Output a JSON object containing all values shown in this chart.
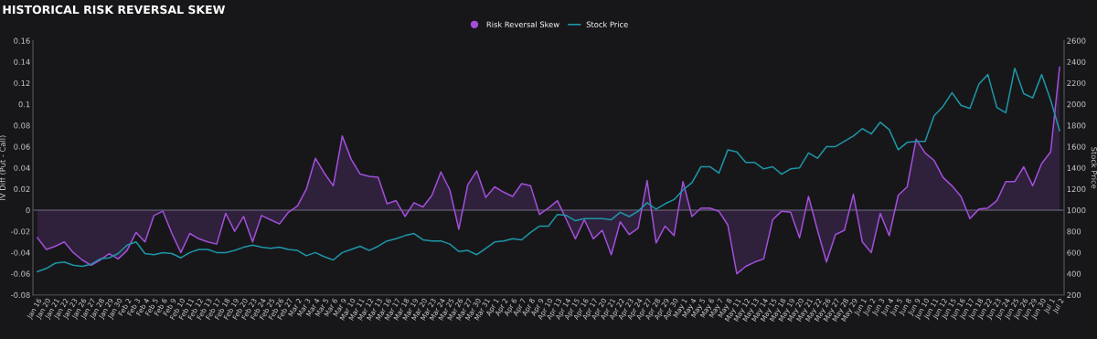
{
  "chart_data": {
    "type": "area",
    "title": "HISTORICAL RISK REVERSAL SKEW",
    "ylabel": "IV Diff (Put - Call)",
    "y2label": "Stock Price",
    "categories": [
      "Jan 16",
      "Jan 20",
      "Jan 21",
      "Jan 22",
      "Jan 23",
      "Jan 26",
      "Jan 27",
      "Jan 28",
      "Jan 29",
      "Jan 30",
      "Feb 2",
      "Feb 3",
      "Feb 4",
      "Feb 5",
      "Feb 6",
      "Feb 9",
      "Feb 10",
      "Feb 11",
      "Feb 12",
      "Feb 13",
      "Feb 17",
      "Feb 18",
      "Feb 19",
      "Feb 20",
      "Feb 23",
      "Feb 24",
      "Feb 25",
      "Feb 26",
      "Feb 27",
      "Mar 2",
      "Mar 3",
      "Mar 4",
      "Mar 5",
      "Mar 6",
      "Mar 9",
      "Mar 10",
      "Mar 11",
      "Mar 12",
      "Mar 13",
      "Mar 16",
      "Mar 17",
      "Mar 18",
      "Mar 19",
      "Mar 20",
      "Mar 23",
      "Mar 24",
      "Mar 25",
      "Mar 26",
      "Mar 27",
      "Mar 30",
      "Mar 31",
      "Apr 1",
      "Apr 2",
      "Apr 6",
      "Apr 7",
      "Apr 8",
      "Apr 9",
      "Apr 10",
      "Apr 13",
      "Apr 14",
      "Apr 15",
      "Apr 16",
      "Apr 17",
      "Apr 20",
      "Apr 21",
      "Apr 22",
      "Apr 23",
      "Apr 24",
      "Apr 27",
      "Apr 28",
      "Apr 29",
      "Apr 30",
      "May 1",
      "May 4",
      "May 5",
      "May 6",
      "May 7",
      "May 8",
      "May 11",
      "May 12",
      "May 13",
      "May 14",
      "May 15",
      "May 18",
      "May 19",
      "May 20",
      "May 21",
      "May 22",
      "May 26",
      "May 27",
      "May 28",
      "May 29",
      "Jun 1",
      "Jun 2",
      "Jun 3",
      "Jun 4",
      "Jun 5",
      "Jun 8",
      "Jun 9",
      "Jun 10",
      "Jun 11",
      "Jun 12",
      "Jun 15",
      "Jun 16",
      "Jun 17",
      "Jun 18",
      "Jun 22",
      "Jun 23",
      "Jun 24",
      "Jun 25",
      "Jun 26",
      "Jun 29",
      "Jun 30",
      "Jul 1",
      "Jul 2"
    ],
    "series": [
      {
        "name": "Risk Reversal Skew",
        "color": "#a24fd8",
        "values": [
          -0.026,
          -0.037,
          -0.034,
          -0.03,
          -0.04,
          -0.047,
          -0.052,
          -0.047,
          -0.041,
          -0.046,
          -0.038,
          -0.021,
          -0.03,
          -0.005,
          -0.001,
          -0.022,
          -0.04,
          -0.022,
          -0.027,
          -0.03,
          -0.032,
          -0.003,
          -0.02,
          -0.006,
          -0.03,
          -0.005,
          -0.009,
          -0.013,
          -0.002,
          0.004,
          0.02,
          0.049,
          0.035,
          0.023,
          0.07,
          0.048,
          0.034,
          0.032,
          0.031,
          0.006,
          0.009,
          -0.006,
          0.007,
          0.003,
          0.014,
          0.036,
          0.019,
          -0.018,
          0.024,
          0.037,
          0.012,
          0.022,
          0.017,
          0.013,
          0.025,
          0.023,
          -0.004,
          0.002,
          0.009,
          -0.009,
          -0.027,
          -0.009,
          -0.027,
          -0.019,
          -0.042,
          -0.011,
          -0.023,
          -0.017,
          0.028,
          -0.031,
          -0.015,
          -0.024,
          0.027,
          -0.006,
          0.002,
          0.002,
          -0.001,
          -0.014,
          -0.06,
          -0.053,
          -0.049,
          -0.046,
          -0.009,
          -0.001,
          -0.002,
          -0.026,
          0.013,
          -0.019,
          -0.049,
          -0.023,
          -0.019,
          0.015,
          -0.03,
          -0.04,
          -0.003,
          -0.024,
          0.014,
          0.022,
          0.067,
          0.054,
          0.047,
          0.031,
          0.023,
          0.013,
          -0.008,
          0.001,
          0.002,
          0.009,
          0.027,
          0.027,
          0.041,
          0.023,
          0.044,
          0.055,
          0.135
        ]
      },
      {
        "name": "Stock Price",
        "type": "line",
        "axis": "y2",
        "color": "#1e96a6",
        "values": [
          420,
          450,
          500,
          510,
          480,
          470,
          490,
          540,
          550,
          590,
          670,
          700,
          590,
          580,
          600,
          590,
          550,
          600,
          630,
          630,
          600,
          600,
          620,
          650,
          670,
          650,
          640,
          650,
          630,
          620,
          570,
          600,
          560,
          530,
          600,
          630,
          660,
          620,
          660,
          710,
          730,
          760,
          780,
          720,
          710,
          710,
          680,
          610,
          620,
          580,
          640,
          700,
          710,
          730,
          720,
          790,
          850,
          850,
          960,
          950,
          900,
          920,
          920,
          920,
          910,
          980,
          940,
          990,
          1070,
          1010,
          1060,
          1100,
          1190,
          1260,
          1410,
          1410,
          1350,
          1570,
          1550,
          1450,
          1450,
          1390,
          1410,
          1340,
          1390,
          1400,
          1540,
          1490,
          1600,
          1600,
          1650,
          1700,
          1770,
          1720,
          1830,
          1760,
          1570,
          1640,
          1650,
          1650,
          1890,
          1980,
          2110,
          1990,
          1960,
          2190,
          2280,
          1970,
          1920,
          2340,
          2100,
          2060,
          2280,
          2040,
          1750
        ]
      }
    ],
    "ylim": [
      -0.08,
      0.16
    ],
    "yticks": [
      -0.08,
      -0.06,
      -0.04,
      -0.02,
      0,
      0.02,
      0.04,
      0.06,
      0.08,
      0.1,
      0.12,
      0.14,
      0.16
    ],
    "y2lim": [
      200,
      2600
    ],
    "y2ticks": [
      200,
      400,
      600,
      800,
      1000,
      1200,
      1400,
      1600,
      1800,
      2000,
      2200,
      2400,
      2600
    ],
    "ref_lines": [
      {
        "axis": "y",
        "value": 0,
        "color": "#55555c"
      }
    ],
    "legend": "top",
    "grid": false
  }
}
